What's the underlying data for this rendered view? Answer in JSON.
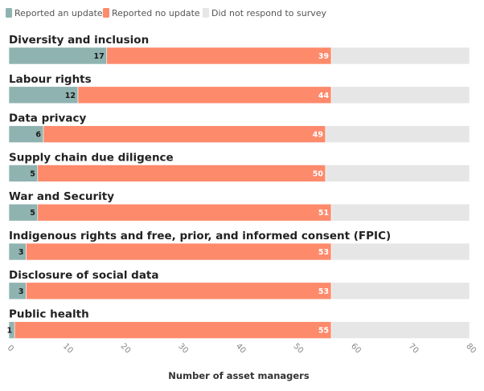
{
  "chart_data": {
    "type": "bar",
    "orientation": "horizontal",
    "stacked": true,
    "categories": [
      "Diversity and inclusion",
      "Labour rights",
      "Data privacy",
      "Supply chain due diligence",
      "War and Security",
      "Indigenous rights and free, prior, and informed consent (FPIC)",
      "Disclosure of social data",
      "Public health"
    ],
    "series": [
      {
        "name": "Reported an update",
        "color": "#8fb3b0",
        "label_color": "#1a1a1a",
        "values": [
          17,
          12,
          6,
          5,
          5,
          3,
          3,
          1
        ]
      },
      {
        "name": "Reported no update",
        "color": "#fd8a6b",
        "label_color": "#ffffff",
        "values": [
          39,
          44,
          49,
          50,
          51,
          53,
          53,
          55
        ]
      },
      {
        "name": "Did not respond to survey",
        "color": "#e6e6e6",
        "label_color": "#ffffff",
        "values": [
          24,
          24,
          25,
          25,
          24,
          24,
          24,
          24
        ]
      }
    ],
    "show_value_labels": [
      true,
      true,
      false
    ],
    "title": "",
    "xlabel": "Number of asset managers",
    "ylabel": "",
    "xlim": [
      0,
      80
    ],
    "xticks": [
      0,
      10,
      20,
      30,
      40,
      50,
      60,
      70,
      80
    ],
    "grid": false,
    "legend_position": "top-left"
  }
}
